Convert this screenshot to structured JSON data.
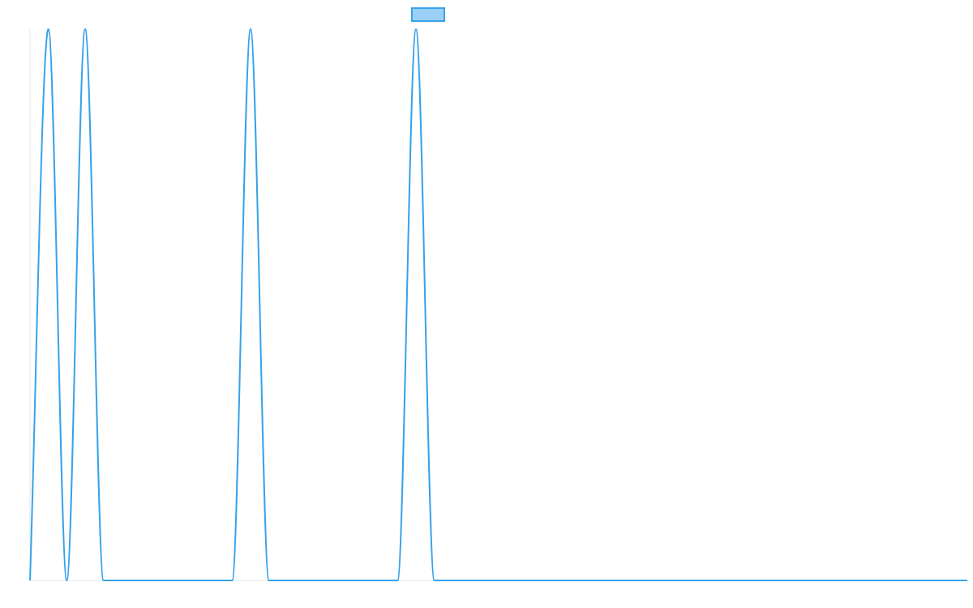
{
  "chart_data": {
    "type": "line",
    "title": "",
    "xlabel": "",
    "ylabel": "",
    "grid": false,
    "legend": {
      "placement": "top-center",
      "entries": [
        {
          "label": ""
        }
      ]
    },
    "xlim": [
      0,
      51
    ],
    "ylim": [
      0,
      1
    ],
    "x_tick_labels": [],
    "y_tick_labels": [],
    "series": [
      {
        "color": "#36a2eb",
        "fill": "#9ad0f5",
        "x": [
          0,
          1,
          2,
          3,
          4,
          5,
          6,
          7,
          8,
          9,
          10,
          11,
          12,
          13,
          14,
          15,
          16,
          17,
          18,
          19,
          20,
          21,
          22,
          23,
          24,
          25,
          26,
          27,
          28,
          29,
          30,
          31,
          32,
          33,
          34,
          35,
          36,
          37,
          38,
          39,
          40,
          41,
          42,
          43,
          44,
          45,
          46,
          47,
          48,
          49,
          50,
          51
        ],
        "values": [
          0,
          1,
          0,
          1,
          0,
          0,
          0,
          0,
          0,
          0,
          0,
          0,
          1,
          0,
          0,
          0,
          0,
          0,
          0,
          0,
          0,
          1,
          0,
          0,
          0,
          0,
          0,
          0,
          0,
          0,
          0,
          0,
          0,
          0,
          0,
          0,
          0,
          0,
          0,
          0,
          0,
          0,
          0,
          0,
          0,
          0,
          0,
          0,
          0,
          0,
          0,
          0
        ]
      }
    ]
  }
}
